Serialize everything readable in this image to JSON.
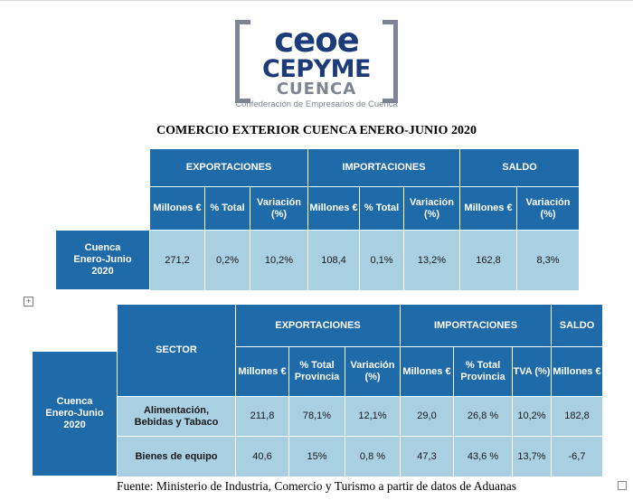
{
  "logo": {
    "line1": "ceoe",
    "line2": "CEPYME",
    "line3": "CUENCA",
    "line4": "Confederación de Empresarios de Cuenca"
  },
  "title": "COMERCIO EXTERIOR CUENCA ENERO-JUNIO 2020",
  "table1": {
    "groups": [
      "EXPORTACIONES",
      "IMPORTACIONES",
      "SALDO"
    ],
    "subheaders": [
      "Millones €",
      "% Total",
      "Variación (%)",
      "Millones €",
      "% Total",
      "Variación (%)",
      "Millones €",
      "Variación (%)"
    ],
    "row_label": "Cuenca Enero-Junio 2020",
    "values": [
      "271,2",
      "0,2%",
      "10,2%",
      "108,4",
      "0,1%",
      "13,2%",
      "162,8",
      "8,3%"
    ]
  },
  "table2": {
    "sector_header": "SECTOR",
    "groups": [
      "EXPORTACIONES",
      "IMPORTACIONES",
      "SALDO"
    ],
    "subheaders": [
      "Millones €",
      "% Total Provincia",
      "Variación (%)",
      "Millones €",
      "% Total Provincia",
      "TVA (%)",
      "Millones €"
    ],
    "region_label": "Cuenca Enero-Junio 2020",
    "rows": [
      {
        "sector": "Alimentación, Bebidas y Tabaco",
        "values": [
          "211,8",
          "78,1%",
          "12,1%",
          "29,0",
          "26,8 %",
          "10,2%",
          "182,8"
        ]
      },
      {
        "sector": "Bienes de equipo",
        "values": [
          "40,6",
          "15%",
          "0,8 %",
          "47,3",
          "43,6 %",
          "13,7%",
          "-6,7"
        ]
      }
    ]
  },
  "source": "Fuente: Ministerio de Industria, Comercio y Turismo a partir de datos de Aduanas",
  "colors": {
    "header_blue": "#1f6aa8",
    "cell_light_blue": "#a9cfe3",
    "logo_navy": "#1d3b78",
    "logo_gray": "#7e8491"
  }
}
